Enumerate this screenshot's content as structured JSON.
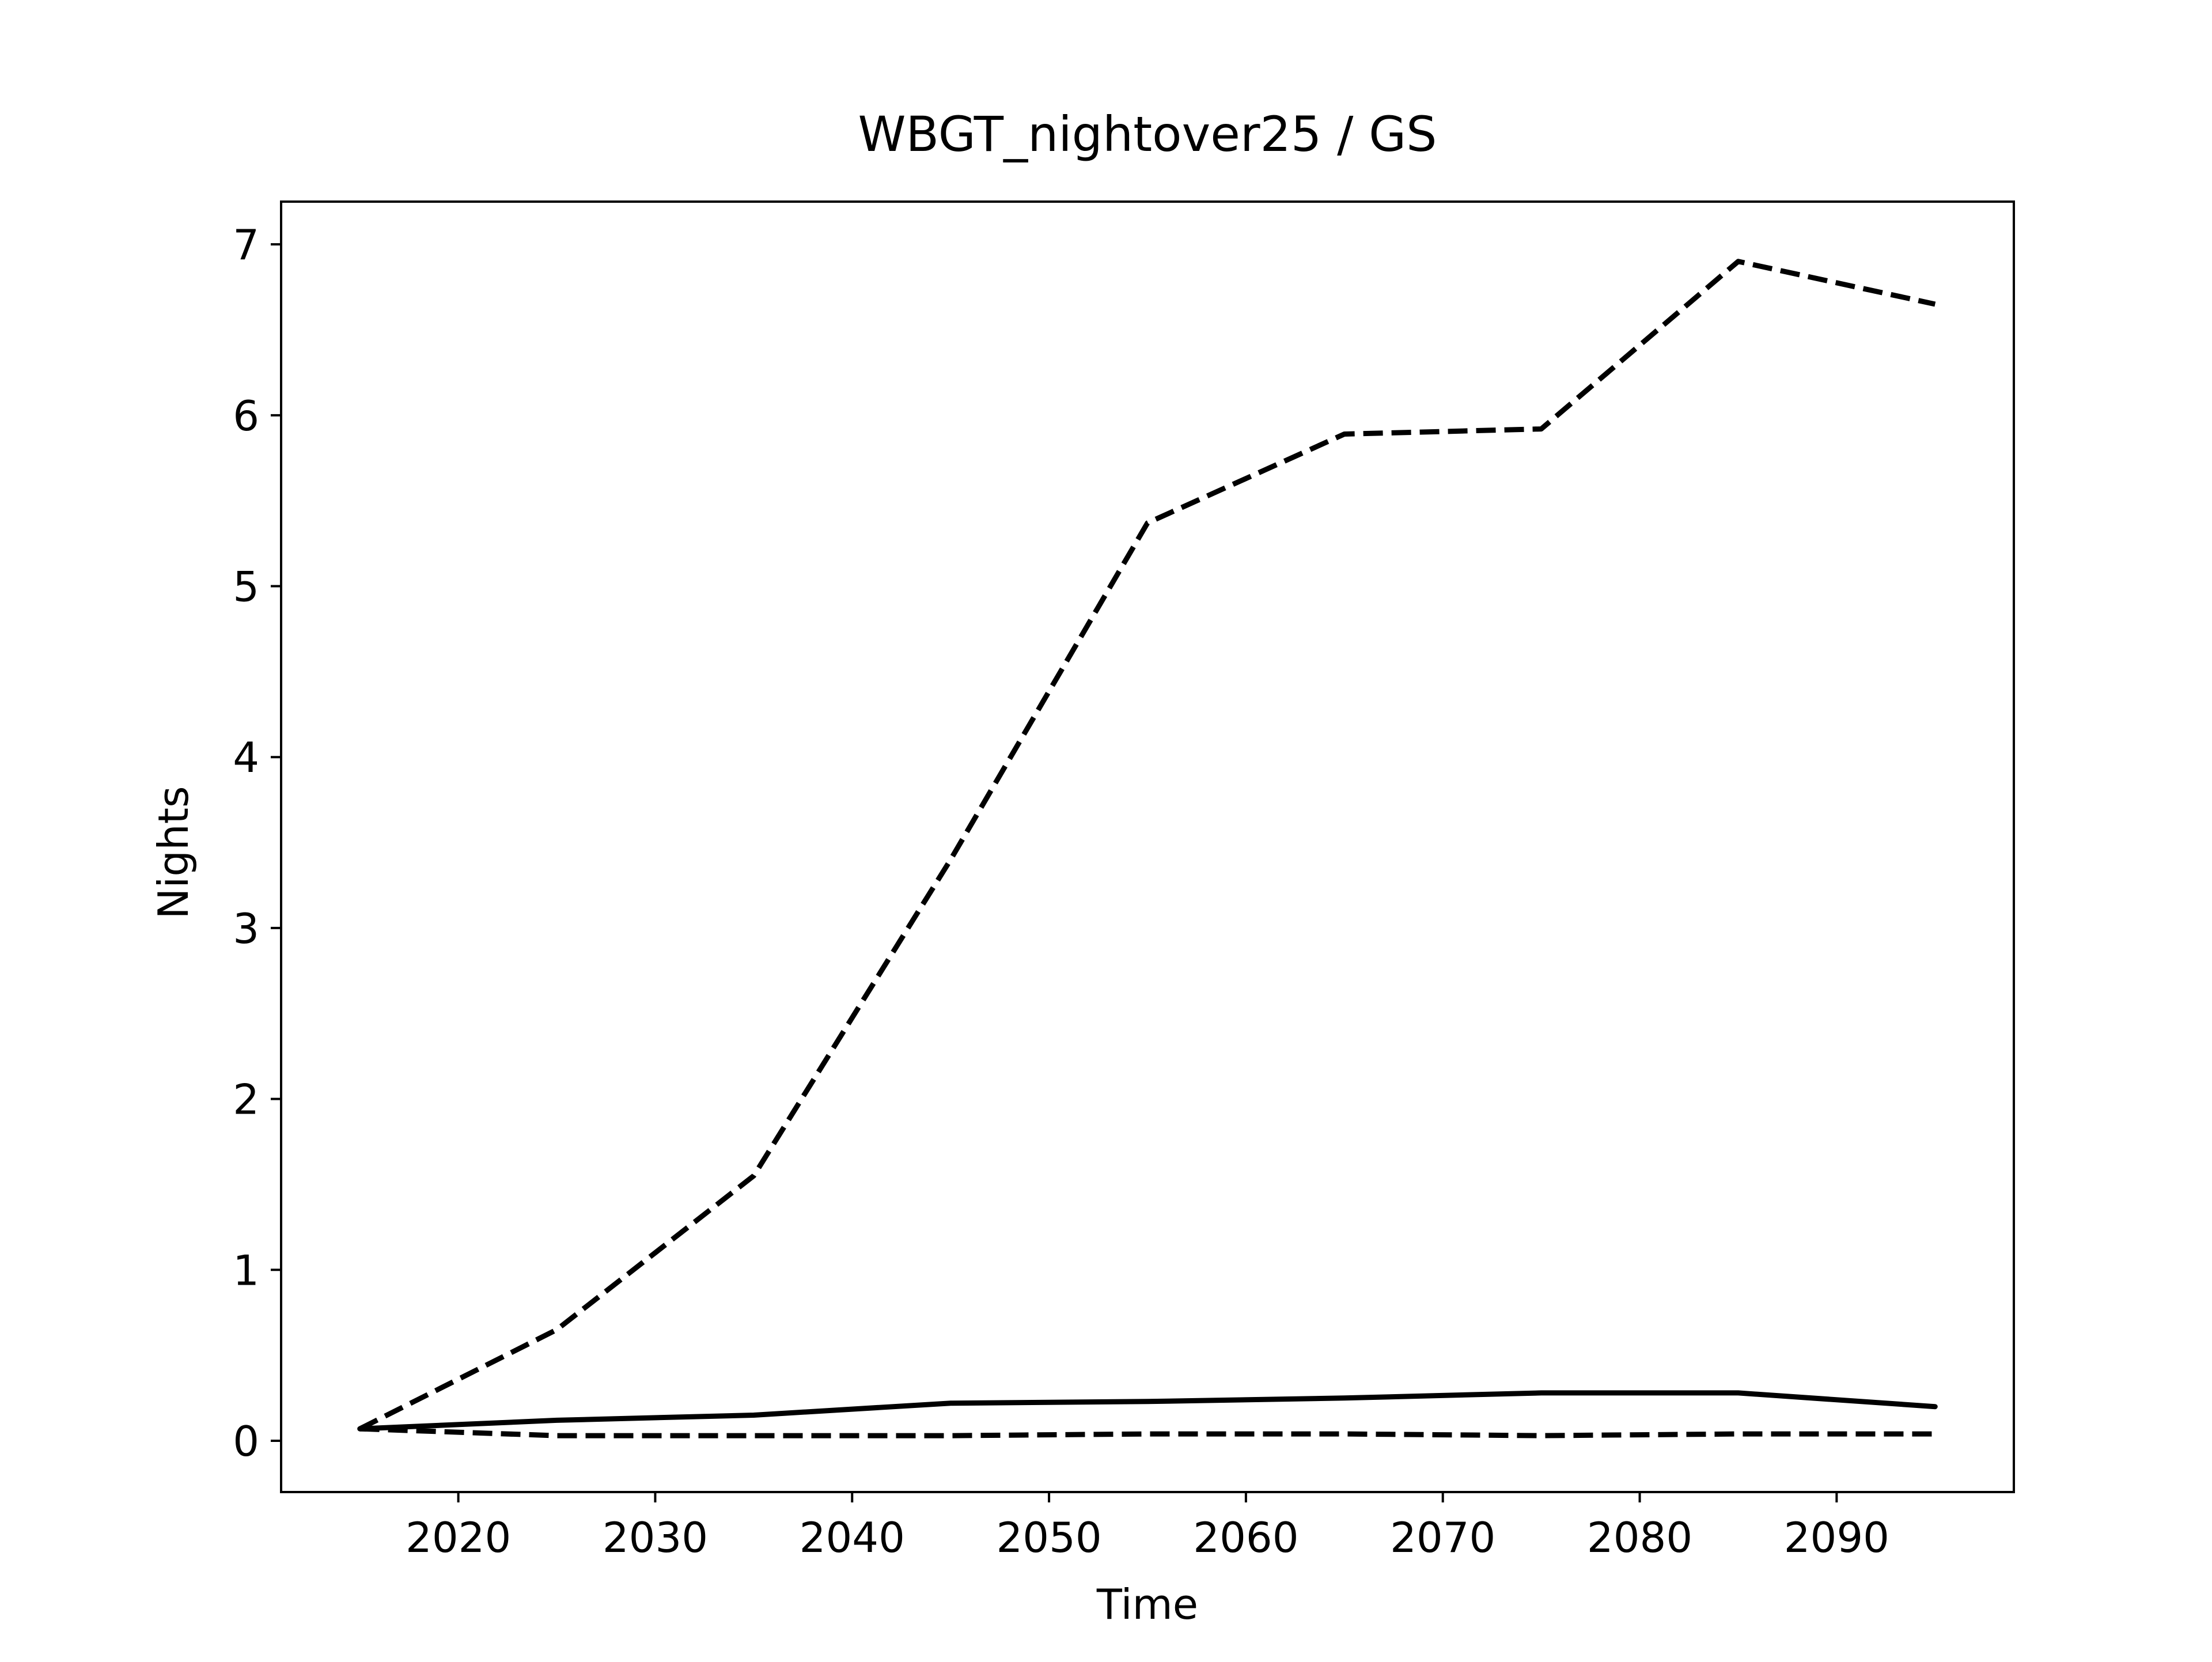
{
  "chart_data": {
    "type": "line",
    "title": "WBGT_nightover25 / GS",
    "xlabel": "Time",
    "ylabel": "Nights",
    "xlim": [
      2011,
      2099
    ],
    "ylim": [
      -0.3,
      7.25
    ],
    "xticks": [
      2020,
      2030,
      2040,
      2050,
      2060,
      2070,
      2080,
      2090
    ],
    "yticks": [
      0,
      1,
      2,
      3,
      4,
      5,
      6,
      7
    ],
    "grid": false,
    "legend": "none",
    "x": [
      2015,
      2025,
      2035,
      2045,
      2055,
      2065,
      2075,
      2085,
      2095
    ],
    "series": [
      {
        "style": "dashed",
        "color": "#000000",
        "values": [
          0.07,
          0.65,
          1.55,
          3.4,
          5.37,
          5.89,
          5.92,
          6.9,
          6.65
        ]
      },
      {
        "style": "solid",
        "color": "#000000",
        "values": [
          0.07,
          0.12,
          0.15,
          0.22,
          0.23,
          0.25,
          0.28,
          0.28,
          0.2
        ]
      },
      {
        "style": "dashed",
        "color": "#000000",
        "values": [
          0.07,
          0.03,
          0.03,
          0.03,
          0.04,
          0.04,
          0.03,
          0.04,
          0.04
        ]
      }
    ]
  }
}
